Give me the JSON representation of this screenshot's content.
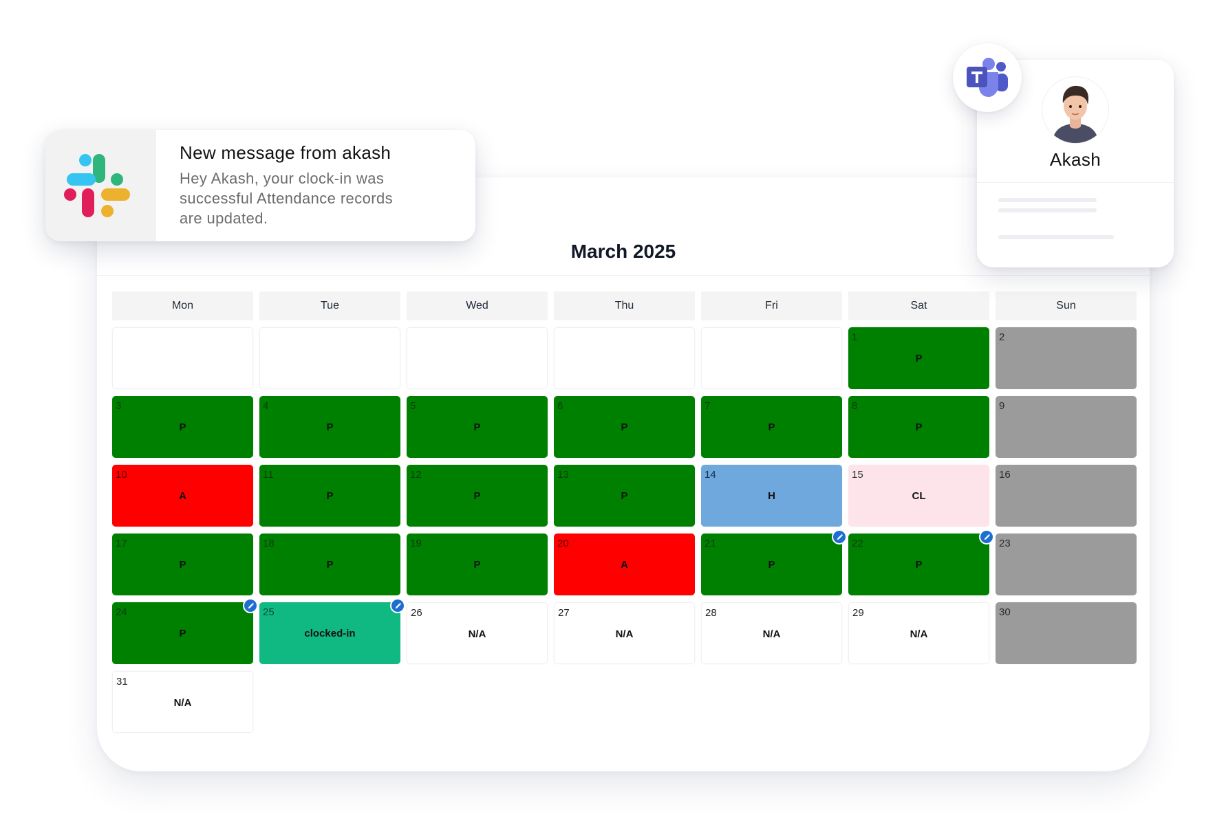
{
  "calendar": {
    "title": "March 2025",
    "weekdays": [
      "Mon",
      "Tue",
      "Wed",
      "Thu",
      "Fri",
      "Sat",
      "Sun"
    ],
    "leading_blanks": 5,
    "days": [
      {
        "day": "1",
        "status": "P"
      },
      {
        "day": "2",
        "status": ""
      },
      {
        "day": "3",
        "status": "P"
      },
      {
        "day": "4",
        "status": "P"
      },
      {
        "day": "5",
        "status": "P"
      },
      {
        "day": "6",
        "status": "P"
      },
      {
        "day": "7",
        "status": "P"
      },
      {
        "day": "8",
        "status": "P"
      },
      {
        "day": "9",
        "status": ""
      },
      {
        "day": "10",
        "status": "A"
      },
      {
        "day": "11",
        "status": "P"
      },
      {
        "day": "12",
        "status": "P"
      },
      {
        "day": "13",
        "status": "P"
      },
      {
        "day": "14",
        "status": "H"
      },
      {
        "day": "15",
        "status": "CL"
      },
      {
        "day": "16",
        "status": ""
      },
      {
        "day": "17",
        "status": "P"
      },
      {
        "day": "18",
        "status": "P"
      },
      {
        "day": "19",
        "status": "P"
      },
      {
        "day": "20",
        "status": "A"
      },
      {
        "day": "21",
        "status": "P",
        "edited": true
      },
      {
        "day": "22",
        "status": "P",
        "edited": true
      },
      {
        "day": "23",
        "status": ""
      },
      {
        "day": "24",
        "status": "P",
        "edited": true
      },
      {
        "day": "25",
        "status": "clocked-in",
        "edited": true
      },
      {
        "day": "26",
        "status": "N/A"
      },
      {
        "day": "27",
        "status": "N/A"
      },
      {
        "day": "28",
        "status": "N/A"
      },
      {
        "day": "29",
        "status": "N/A"
      },
      {
        "day": "30",
        "status": ""
      },
      {
        "day": "31",
        "status": "N/A"
      }
    ],
    "colors": {
      "present": "#008000",
      "absent": "#ff0000",
      "holiday": "#6fa8dc",
      "casual_leave": "#fde4ea",
      "weekend": "#9b9b9b",
      "clocked_in": "#10b981",
      "edit_badge": "#1c6fd1"
    }
  },
  "notification": {
    "icon": "slack-logo-icon",
    "title": "New message from akash",
    "lines": [
      "Hey Akash, your clock-in was",
      "successful Attendance records",
      "are updated."
    ]
  },
  "profile": {
    "name": "Akash",
    "avatar_icon": "avatar-icon",
    "app_icon": "microsoft-teams-icon"
  }
}
